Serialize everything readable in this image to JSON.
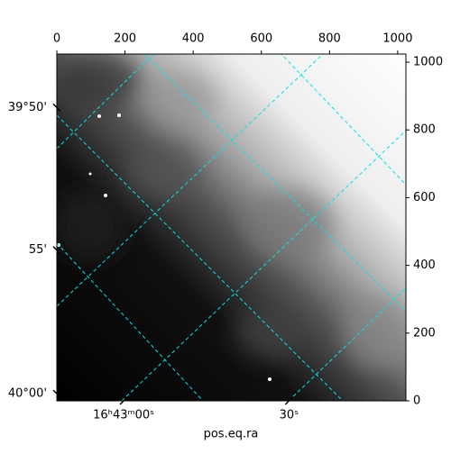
{
  "chart_data": {
    "type": "image",
    "xlim": [
      0,
      1024
    ],
    "xticks": [
      0,
      200,
      400,
      600,
      800,
      1000
    ],
    "ylim": [
      0,
      1024
    ],
    "yticks": [
      0,
      200,
      400,
      600,
      800,
      1000
    ],
    "dec_ticks": [
      {
        "value": 866,
        "label": "39°50'"
      },
      {
        "value": 445,
        "label": "55'"
      },
      {
        "value": 21,
        "label": "40°00'"
      }
    ],
    "ra_ticks": [
      {
        "value": 196,
        "label": "16ʰ43ᵐ00ˢ"
      },
      {
        "value": 681,
        "label": "30ˢ"
      }
    ],
    "xlabel": "pos.eq.ra",
    "grid_color": "#00e5e5"
  }
}
